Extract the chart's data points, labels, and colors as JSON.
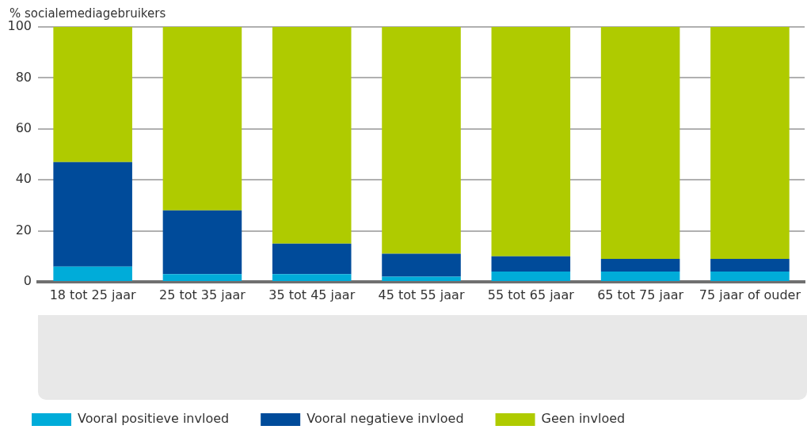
{
  "chart_data": {
    "type": "bar",
    "stacked": true,
    "ylabel": "% socialemediagebruikers",
    "categories": [
      "18 tot 25 jaar",
      "25 tot 35 jaar",
      "35 tot 45 jaar",
      "45 tot 55 jaar",
      "55 tot 65 jaar",
      "65 tot 75 jaar",
      "75 jaar of ouder"
    ],
    "series": [
      {
        "name": "Vooral positieve invloed",
        "color": "#00acd9",
        "values": [
          6,
          3,
          3,
          2,
          4,
          4,
          4
        ]
      },
      {
        "name": "Vooral negatieve invloed",
        "color": "#004b9a",
        "values": [
          41,
          25,
          12,
          9,
          6,
          5,
          5
        ]
      },
      {
        "name": "Geen invloed",
        "color": "#afcb00",
        "values": [
          53,
          72,
          85,
          89,
          90,
          91,
          91
        ]
      }
    ],
    "ylim": [
      0,
      100
    ],
    "yticks": [
      0,
      20,
      40,
      60,
      80,
      100
    ],
    "grid": "y",
    "legend": "bottom"
  }
}
